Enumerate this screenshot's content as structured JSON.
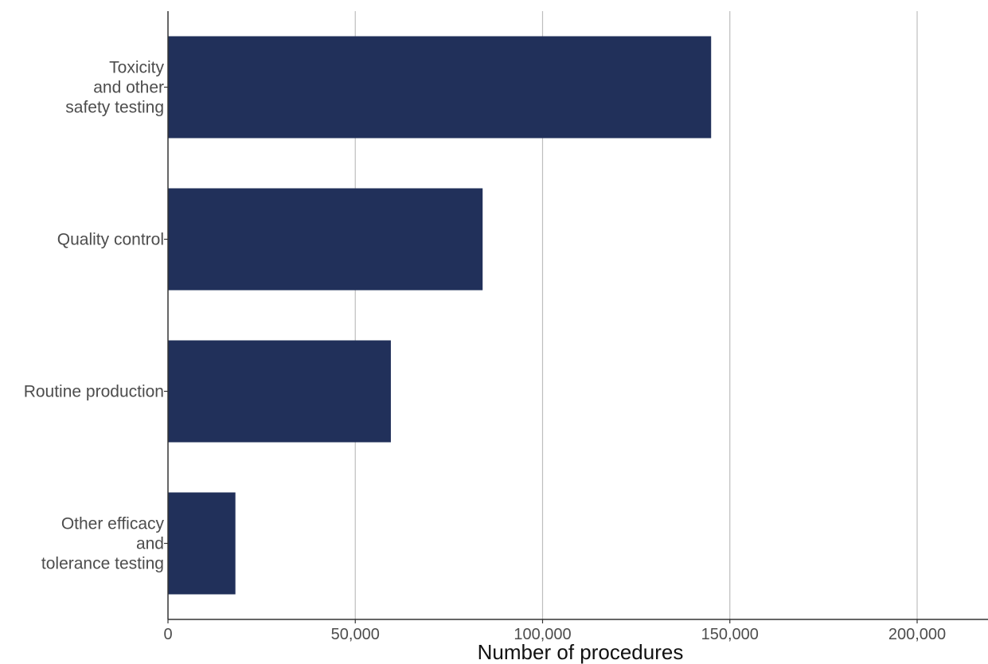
{
  "chart_data": {
    "type": "bar",
    "orientation": "horizontal",
    "categories": [
      "Toxicity and other safety testing",
      "Quality control",
      "Routine production",
      "Other efficacy and tolerance testing"
    ],
    "category_lines": [
      [
        "Toxicity",
        "and other",
        "safety testing"
      ],
      [
        "Quality control"
      ],
      [
        "Routine production"
      ],
      [
        "Other efficacy",
        "and",
        "tolerance testing"
      ]
    ],
    "values": [
      145000,
      84000,
      59500,
      18000
    ],
    "xlabel": "Number of procedures",
    "ylabel": "",
    "xlim": [
      0,
      220000
    ],
    "x_ticks": [
      0,
      50000,
      100000,
      150000,
      200000
    ],
    "x_tick_labels": [
      "0",
      "50,000",
      "100,000",
      "150,000",
      "200,000"
    ],
    "grid": "vertical major gridlines",
    "bar_color": "#21305a",
    "gridline_color": "#bdbdbd"
  }
}
